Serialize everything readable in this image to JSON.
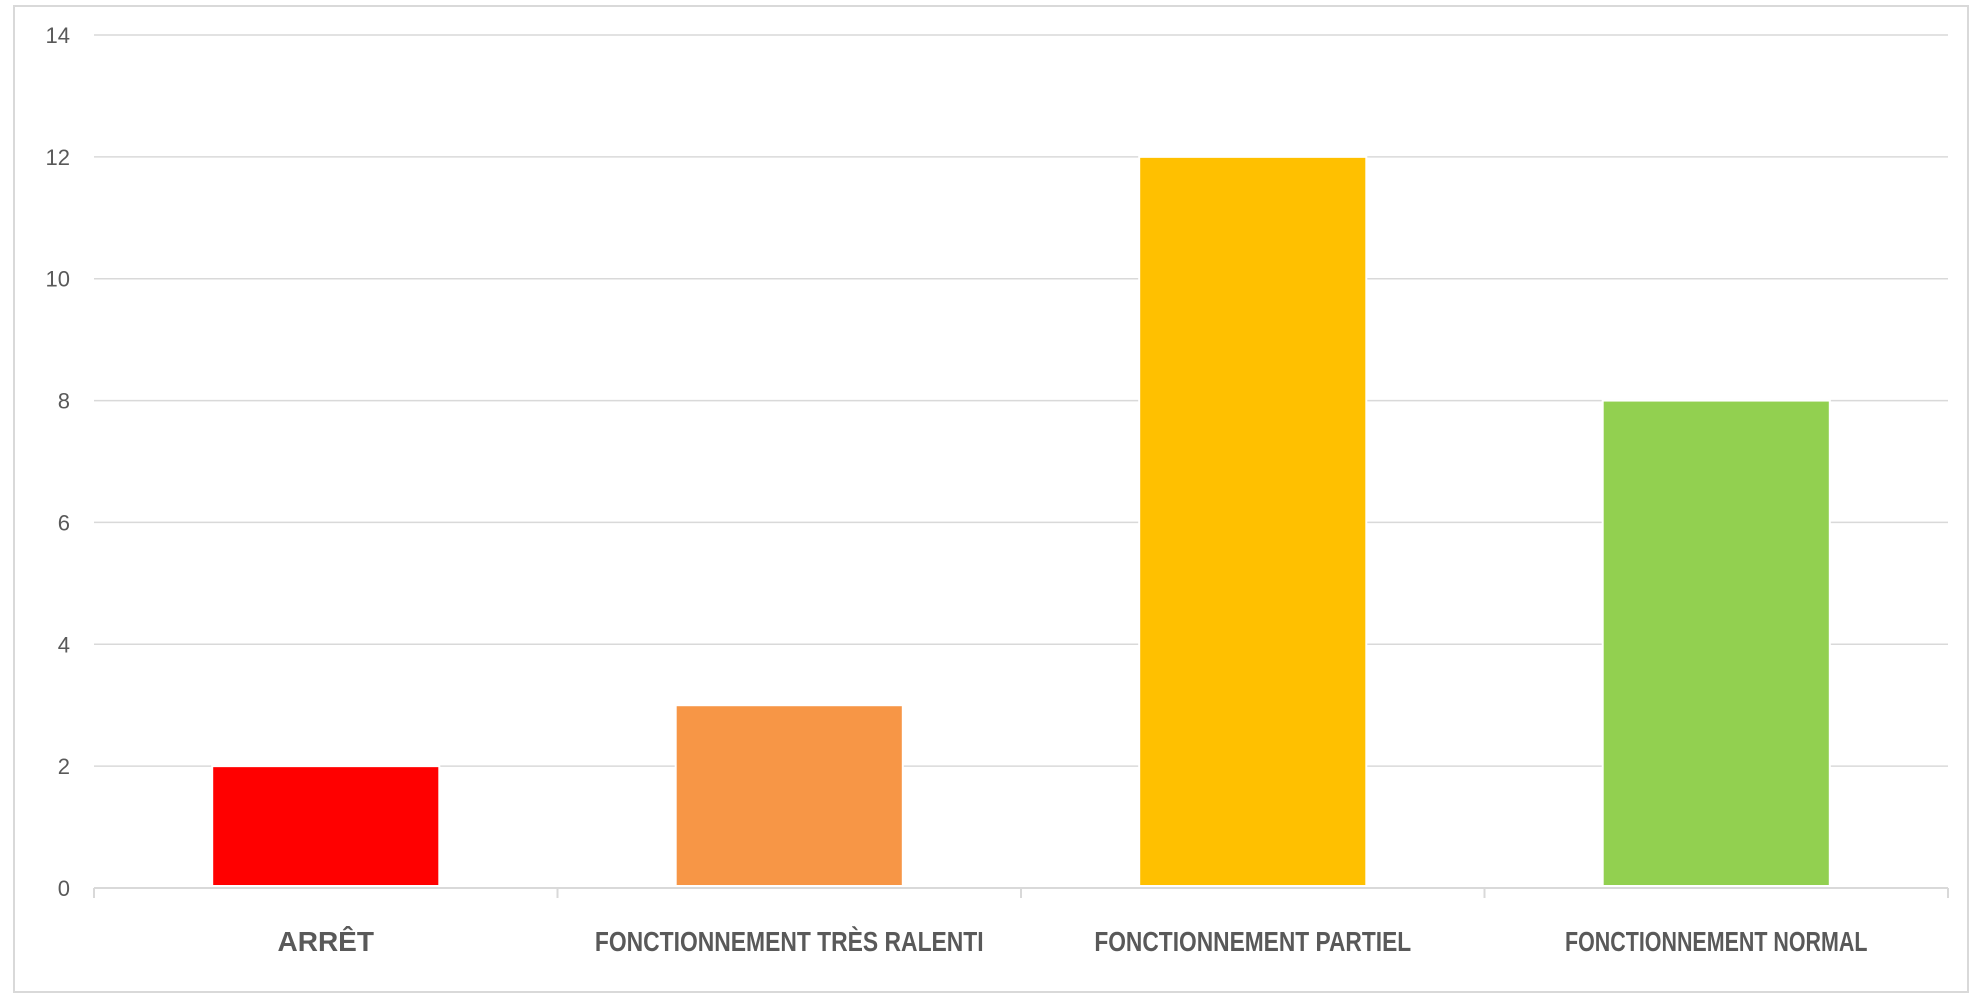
{
  "chart_data": {
    "type": "bar",
    "categories": [
      "ARRÊT",
      "FONCTIONNEMENT TRÈS RALENTI",
      "FONCTIONNEMENT PARTIEL",
      "FONCTIONNEMENT NORMAL"
    ],
    "values": [
      2,
      3,
      12,
      8
    ],
    "colors": [
      "#ff0000",
      "#f79646",
      "#ffc000",
      "#92d050"
    ],
    "title": "",
    "xlabel": "",
    "ylabel": "",
    "ylim": [
      0,
      14
    ],
    "yticks": [
      0,
      2,
      4,
      6,
      8,
      10,
      12,
      14
    ],
    "grid": true,
    "legend": "none"
  }
}
